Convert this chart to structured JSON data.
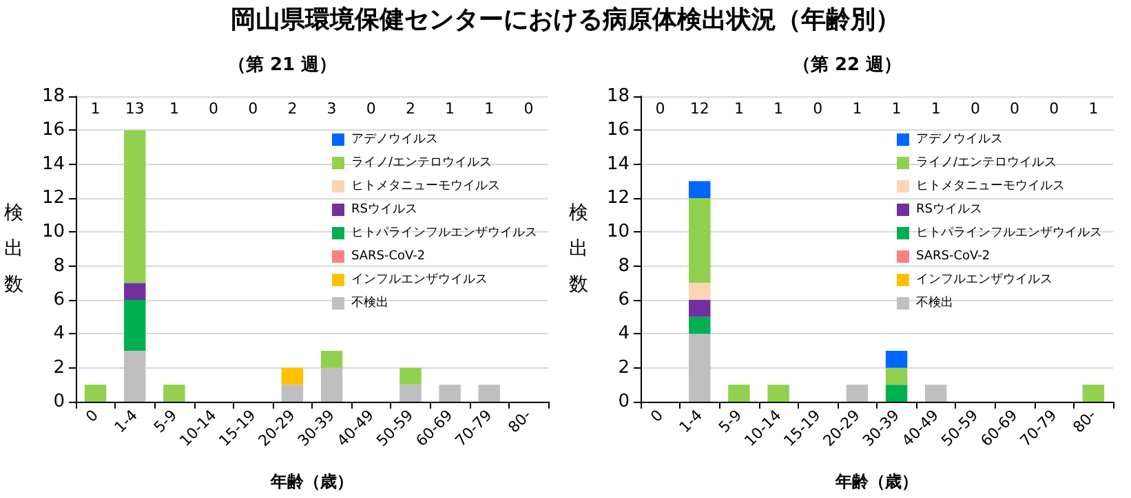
{
  "chart_data": [
    {
      "type": "bar",
      "title": "岡山県環境保健センターにおける病原体検出状況（年齢別）",
      "subtitle": "（第 21 週）",
      "xlabel": "年齢（歳）",
      "ylabel": "検出数",
      "stacked": true,
      "grid": "y",
      "legend": "top right",
      "categories": [
        "0",
        "1-4",
        "5-9",
        "10-14",
        "15-19",
        "20-29",
        "30-39",
        "40-49",
        "50-59",
        "60-69",
        "70-79",
        "80-"
      ],
      "ylim": [
        0,
        18
      ],
      "yticks": [
        0,
        2,
        4,
        6,
        8,
        10,
        12,
        14,
        16,
        18
      ],
      "series": [
        {
          "name": "不検出",
          "color": "#bfbfbf",
          "values": [
            0,
            3,
            0,
            0,
            0,
            1,
            2,
            0,
            1,
            1,
            1,
            0
          ]
        },
        {
          "name": "インフルエンザウイルス",
          "color": "#ffc000",
          "values": [
            0,
            0,
            0,
            0,
            0,
            1,
            0,
            0,
            0,
            0,
            0,
            0
          ]
        },
        {
          "name": "SARS-CoV-2",
          "color": "#ff8080",
          "values": [
            0,
            0,
            0,
            0,
            0,
            0,
            0,
            0,
            0,
            0,
            0,
            0
          ]
        },
        {
          "name": "ヒトパラインフルエンザウイルス",
          "color": "#00b050",
          "values": [
            0,
            3,
            0,
            0,
            0,
            0,
            0,
            0,
            0,
            0,
            0,
            0
          ]
        },
        {
          "name": "RSウイルス",
          "color": "#7030a0",
          "values": [
            0,
            1,
            0,
            0,
            0,
            0,
            0,
            0,
            0,
            0,
            0,
            0
          ]
        },
        {
          "name": "ヒトメタニューモウイルス",
          "color": "#fcd5b4",
          "values": [
            0,
            0,
            0,
            0,
            0,
            0,
            0,
            0,
            0,
            0,
            0,
            0
          ]
        },
        {
          "name": "ライノ/エンテロウイルス",
          "color": "#92d050",
          "values": [
            1,
            9,
            1,
            0,
            0,
            0,
            1,
            0,
            1,
            0,
            0,
            0
          ]
        },
        {
          "name": "アデノウイルス",
          "color": "#0066ff",
          "values": [
            0,
            0,
            0,
            0,
            0,
            0,
            0,
            0,
            0,
            0,
            0,
            0
          ]
        }
      ],
      "annotations": [
        "1",
        "13",
        "1",
        "0",
        "0",
        "2",
        "3",
        "0",
        "2",
        "1",
        "1",
        "0"
      ]
    },
    {
      "type": "bar",
      "subtitle": "（第 22 週）",
      "xlabel": "年齢（歳）",
      "ylabel": "検出数",
      "stacked": true,
      "grid": "y",
      "legend": "top right",
      "categories": [
        "0",
        "1-4",
        "5-9",
        "10-14",
        "15-19",
        "20-29",
        "30-39",
        "40-49",
        "50-59",
        "60-69",
        "70-79",
        "80-"
      ],
      "ylim": [
        0,
        18
      ],
      "yticks": [
        0,
        2,
        4,
        6,
        8,
        10,
        12,
        14,
        16,
        18
      ],
      "series": [
        {
          "name": "不検出",
          "color": "#bfbfbf",
          "values": [
            0,
            4,
            0,
            0,
            0,
            1,
            0,
            1,
            0,
            0,
            0,
            0
          ]
        },
        {
          "name": "インフルエンザウイルス",
          "color": "#ffc000",
          "values": [
            0,
            0,
            0,
            0,
            0,
            0,
            0,
            0,
            0,
            0,
            0,
            0
          ]
        },
        {
          "name": "SARS-CoV-2",
          "color": "#ff8080",
          "values": [
            0,
            0,
            0,
            0,
            0,
            0,
            0,
            0,
            0,
            0,
            0,
            0
          ]
        },
        {
          "name": "ヒトパラインフルエンザウイルス",
          "color": "#00b050",
          "values": [
            0,
            1,
            0,
            0,
            0,
            0,
            1,
            0,
            0,
            0,
            0,
            0
          ]
        },
        {
          "name": "RSウイルス",
          "color": "#7030a0",
          "values": [
            0,
            1,
            0,
            0,
            0,
            0,
            0,
            0,
            0,
            0,
            0,
            0
          ]
        },
        {
          "name": "ヒトメタニューモウイルス",
          "color": "#fcd5b4",
          "values": [
            0,
            1,
            0,
            0,
            0,
            0,
            0,
            0,
            0,
            0,
            0,
            0
          ]
        },
        {
          "name": "ライノ/エンテロウイルス",
          "color": "#92d050",
          "values": [
            0,
            5,
            1,
            1,
            0,
            0,
            1,
            0,
            0,
            0,
            0,
            1
          ]
        },
        {
          "name": "アデノウイルス",
          "color": "#0066ff",
          "values": [
            0,
            1,
            0,
            0,
            0,
            0,
            1,
            0,
            0,
            0,
            0,
            0
          ]
        }
      ],
      "annotations": [
        "0",
        "12",
        "1",
        "1",
        "0",
        "1",
        "1",
        "1",
        "0",
        "0",
        "0",
        "1"
      ]
    }
  ]
}
